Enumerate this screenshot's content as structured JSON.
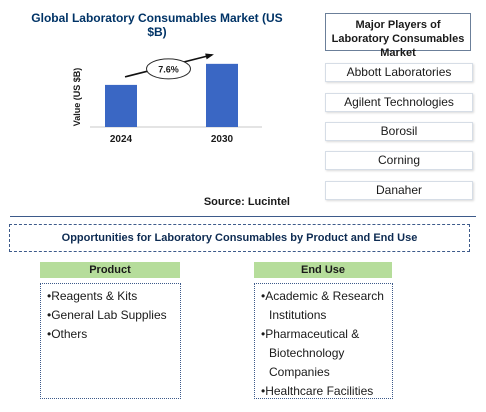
{
  "chart_data": {
    "type": "bar",
    "title": "Global Laboratory Consumables Market (US $B)",
    "ylabel": "Value (US $B)",
    "xlabel": "",
    "categories": [
      "2024",
      "2030"
    ],
    "values": [
      1.0,
      1.5
    ],
    "ylim": [
      0,
      1.9
    ],
    "grid": false,
    "bar_color": "#3a67c4",
    "annotation": {
      "label": "7.6%",
      "type": "growth-arrow"
    }
  },
  "source": "Source: Lucintel",
  "players": {
    "title": "Major Players of Laboratory Consumables Market",
    "items": [
      "Abbott Laboratories",
      "Agilent Technologies",
      "Borosil",
      "Corning",
      "Danaher"
    ]
  },
  "opportunities": {
    "title": "Opportunities for Laboratory Consumables by Product and End Use",
    "product": {
      "heading": "Product",
      "items": [
        "Reagents & Kits",
        "General Lab Supplies",
        "Others"
      ]
    },
    "end_use": {
      "heading": "End Use",
      "items": [
        "Academic & Research Institutions",
        "Pharmaceutical & Biotechnology Companies",
        "Healthcare Facilities"
      ]
    }
  },
  "colors": {
    "title_navy": "#003366",
    "header_green": "#b6dd9b",
    "border_blue": "#3d5a8a"
  }
}
